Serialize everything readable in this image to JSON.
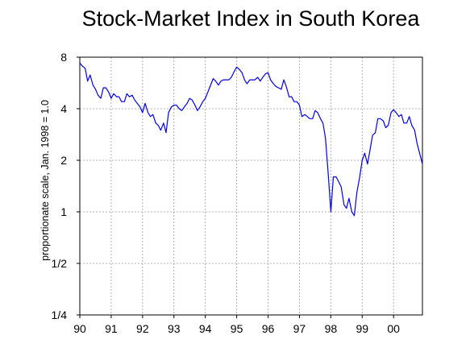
{
  "chart_data": {
    "type": "line",
    "title": "Stock-Market Index in South Korea",
    "ylabel": "proportionate scale, Jan. 1998 = 1.0",
    "xlabel": "",
    "y_scale": "log2",
    "ylim": [
      0.25,
      8
    ],
    "xlim": [
      1990.0,
      2000.92
    ],
    "grid": true,
    "legend": "none",
    "y_ticks": [
      8,
      4,
      2,
      1,
      0.5,
      0.25
    ],
    "y_tick_labels": [
      "8",
      "4",
      "2",
      "1",
      "1/2",
      "1/4"
    ],
    "x_ticks": [
      1990,
      1991,
      1992,
      1993,
      1994,
      1995,
      1996,
      1997,
      1998,
      1999,
      2000
    ],
    "x_tick_labels": [
      "90",
      "91",
      "92",
      "93",
      "94",
      "95",
      "96",
      "97",
      "98",
      "99",
      "00"
    ],
    "series": [
      {
        "color": "#0000ee",
        "x": [
          1990.0,
          1990.08,
          1990.17,
          1990.25,
          1990.33,
          1990.42,
          1990.5,
          1990.58,
          1990.67,
          1990.75,
          1990.83,
          1990.92,
          1991.0,
          1991.08,
          1991.17,
          1991.25,
          1991.33,
          1991.42,
          1991.5,
          1991.58,
          1991.67,
          1991.75,
          1991.83,
          1991.92,
          1992.0,
          1992.08,
          1992.17,
          1992.25,
          1992.33,
          1992.42,
          1992.5,
          1992.58,
          1992.67,
          1992.75,
          1992.83,
          1992.92,
          1993.0,
          1993.08,
          1993.17,
          1993.25,
          1993.33,
          1993.42,
          1993.5,
          1993.58,
          1993.67,
          1993.75,
          1993.83,
          1993.92,
          1994.0,
          1994.08,
          1994.17,
          1994.25,
          1994.33,
          1994.42,
          1994.5,
          1994.58,
          1994.67,
          1994.75,
          1994.83,
          1994.92,
          1995.0,
          1995.08,
          1995.17,
          1995.25,
          1995.33,
          1995.42,
          1995.5,
          1995.58,
          1995.67,
          1995.75,
          1995.83,
          1995.92,
          1996.0,
          1996.08,
          1996.17,
          1996.25,
          1996.33,
          1996.42,
          1996.5,
          1996.58,
          1996.67,
          1996.75,
          1996.83,
          1996.92,
          1997.0,
          1997.08,
          1997.17,
          1997.25,
          1997.33,
          1997.42,
          1997.5,
          1997.58,
          1997.67,
          1997.75,
          1997.83,
          1997.92,
          1998.0,
          1998.08,
          1998.17,
          1998.25,
          1998.33,
          1998.42,
          1998.5,
          1998.58,
          1998.67,
          1998.75,
          1998.83,
          1998.92,
          1999.0,
          1999.08,
          1999.17,
          1999.25,
          1999.33,
          1999.42,
          1999.5,
          1999.58,
          1999.67,
          1999.75,
          1999.83,
          1999.92,
          2000.0,
          2000.08,
          2000.17,
          2000.25,
          2000.33,
          2000.42,
          2000.5,
          2000.58,
          2000.67,
          2000.75,
          2000.83,
          2000.92
        ],
        "values": [
          7.4,
          7.1,
          6.9,
          5.8,
          6.3,
          5.5,
          5.2,
          4.8,
          4.6,
          5.3,
          5.3,
          5.0,
          4.6,
          4.9,
          4.7,
          4.7,
          4.4,
          4.4,
          4.9,
          4.7,
          4.8,
          4.5,
          4.3,
          4.1,
          3.8,
          4.3,
          3.8,
          3.6,
          3.7,
          3.3,
          3.2,
          3.0,
          3.3,
          2.9,
          3.8,
          4.1,
          4.2,
          4.2,
          4.0,
          3.9,
          4.1,
          4.3,
          4.6,
          4.5,
          4.2,
          3.9,
          4.1,
          4.4,
          4.6,
          5.0,
          5.5,
          6.0,
          5.8,
          5.5,
          5.8,
          5.9,
          5.9,
          5.9,
          6.1,
          6.6,
          7.0,
          6.8,
          6.5,
          5.9,
          5.6,
          5.9,
          5.9,
          5.9,
          6.1,
          5.8,
          6.1,
          6.4,
          6.5,
          5.9,
          5.6,
          5.4,
          5.3,
          5.2,
          5.9,
          5.4,
          4.7,
          4.7,
          4.4,
          4.4,
          4.2,
          3.6,
          3.7,
          3.6,
          3.5,
          3.5,
          3.9,
          3.8,
          3.5,
          3.3,
          2.7,
          1.65,
          1.0,
          1.6,
          1.6,
          1.5,
          1.4,
          1.1,
          1.05,
          1.2,
          1.0,
          0.95,
          1.3,
          1.6,
          2.0,
          2.2,
          1.9,
          2.3,
          2.8,
          2.9,
          3.5,
          3.5,
          3.4,
          3.1,
          3.2,
          3.8,
          3.95,
          3.8,
          3.6,
          3.7,
          3.3,
          3.3,
          3.6,
          3.2,
          3.0,
          2.5,
          2.2,
          1.9
        ]
      }
    ]
  }
}
